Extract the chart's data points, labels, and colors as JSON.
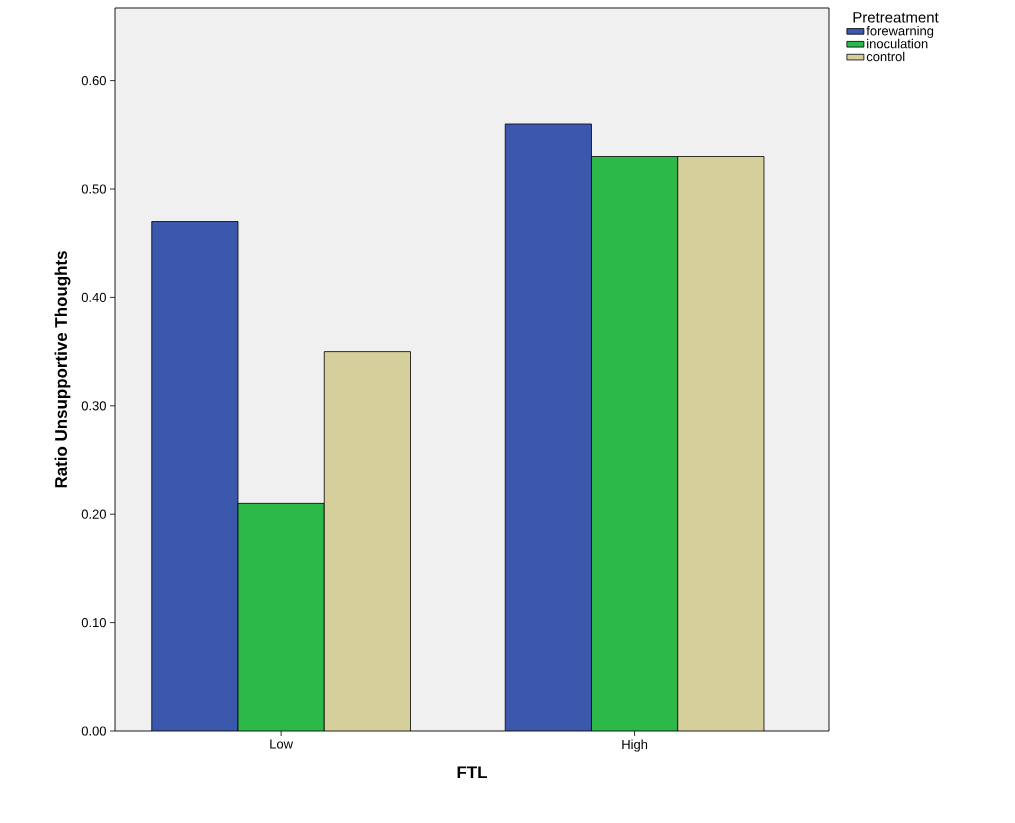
{
  "chart_data": {
    "type": "bar",
    "xlabel": "FTL",
    "ylabel": "Ratio Unsupportive Thoughts",
    "legend_title": "Pretreatment",
    "categories": [
      "Low",
      "High"
    ],
    "series": [
      {
        "name": "forewarning",
        "color": "#3c58ad",
        "values": [
          0.47,
          0.56
        ]
      },
      {
        "name": "inoculation",
        "color": "#2db84a",
        "values": [
          0.21,
          0.53
        ]
      },
      {
        "name": "control",
        "color": "#d5cf9b",
        "values": [
          0.35,
          0.53
        ]
      }
    ],
    "ylim": [
      0,
      0.667
    ],
    "yticks": [
      {
        "value": 0,
        "label": "0.00"
      },
      {
        "value": 0.1,
        "label": "0.10"
      },
      {
        "value": 0.2,
        "label": "0.20"
      },
      {
        "value": 0.3,
        "label": "0.30"
      },
      {
        "value": 0.4,
        "label": "0.40"
      },
      {
        "value": 0.5,
        "label": "0.50"
      },
      {
        "value": 0.6,
        "label": "0.60"
      }
    ],
    "legend": "top right",
    "grid": false
  }
}
